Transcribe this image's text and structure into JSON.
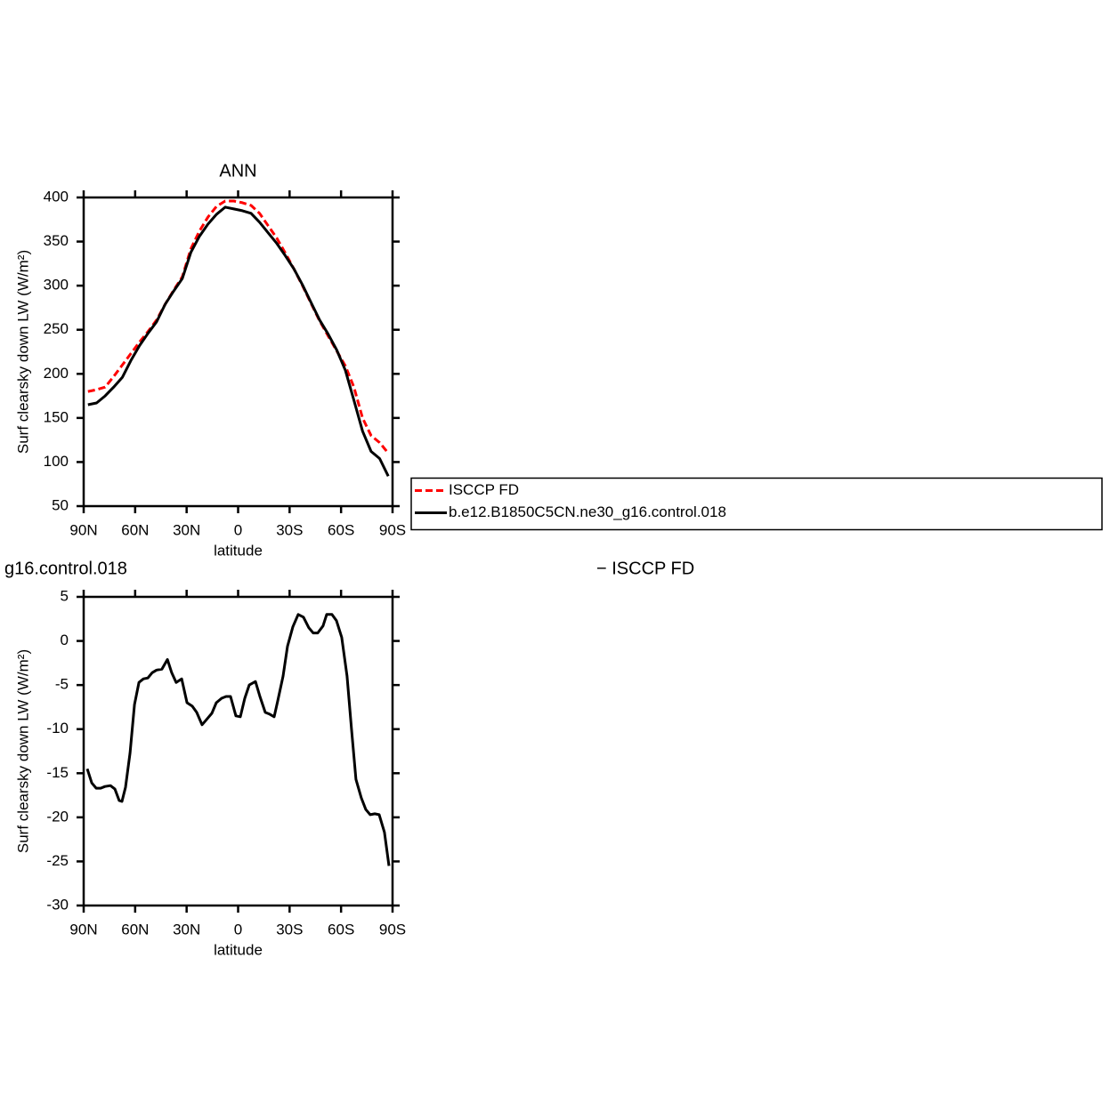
{
  "chart_data": [
    {
      "type": "line",
      "title": "ANN",
      "xlabel": "latitude",
      "ylabel": "Surf clearsky down LW (W/m²)",
      "x": [
        87.5,
        82.5,
        77.5,
        72.5,
        67.5,
        62.5,
        57.5,
        52.5,
        47.5,
        42.5,
        37.5,
        32.5,
        27.5,
        22.5,
        17.5,
        12.5,
        7.5,
        2.5,
        -2.5,
        -7.5,
        -12.5,
        -17.5,
        -22.5,
        -27.5,
        -32.5,
        -37.5,
        -42.5,
        -47.5,
        -52.5,
        -57.5,
        -62.5,
        -67.5,
        -72.5,
        -77.5,
        -82.5,
        -87.5
      ],
      "series": [
        {
          "name": "ISCCP FD",
          "color": "#ff0000",
          "line_style": "dashed",
          "values": [
            180,
            182,
            185,
            197,
            210,
            223,
            236,
            248,
            261,
            279,
            295,
            310,
            342,
            362,
            378,
            390,
            396,
            396,
            394,
            391,
            382,
            368,
            354,
            337,
            319,
            300,
            280,
            260,
            243,
            226,
            209,
            185,
            150,
            130,
            122,
            110
          ]
        },
        {
          "name": "b.e12.B1850C5CN.ne30_g16.control.018",
          "color": "#000000",
          "line_style": "solid",
          "values": [
            165,
            167,
            175,
            185,
            196,
            215,
            232,
            246,
            259,
            279,
            294,
            308,
            338,
            356,
            370,
            381,
            389,
            387,
            385,
            382,
            372,
            360,
            348,
            334,
            319,
            301,
            281,
            261,
            245,
            227,
            204,
            170,
            135,
            112,
            104,
            84
          ]
        }
      ],
      "xlim": [
        90,
        -90
      ],
      "xticks": [
        {
          "value": 90,
          "label": "90N"
        },
        {
          "value": 60,
          "label": "60N"
        },
        {
          "value": 30,
          "label": "30N"
        },
        0,
        {
          "value": -30,
          "label": "30S"
        },
        {
          "value": -60,
          "label": "60S"
        },
        {
          "value": -90,
          "label": "90S"
        }
      ],
      "ylim": [
        50,
        400
      ],
      "yticks": [
        50,
        100,
        150,
        200,
        250,
        300,
        350,
        400
      ],
      "legend": "right"
    },
    {
      "type": "line",
      "title_left": "g16.control.018",
      "title_right": "− ISCCP FD",
      "xlabel": "latitude",
      "ylabel": "Surf clearsky down LW (W/m²)",
      "x": [
        87.9,
        85.3,
        82.7,
        80.1,
        77.6,
        74.4,
        71.8,
        69.3,
        67.7,
        65.6,
        63.0,
        60.4,
        57.8,
        55.2,
        52.6,
        50.1,
        47.5,
        44.4,
        41.2,
        38.7,
        36.1,
        32.9,
        29.8,
        26.7,
        24.1,
        21.0,
        17.9,
        15.3,
        12.7,
        9.6,
        7.0,
        4.4,
        1.3,
        -1.3,
        -3.9,
        -6.5,
        -10.1,
        -12.7,
        -15.8,
        -18.4,
        -21.0,
        -23.1,
        -26.2,
        -28.8,
        -31.9,
        -35.0,
        -38.1,
        -41.2,
        -43.8,
        -46.4,
        -49.5,
        -51.6,
        -54.7,
        -57.3,
        -60.4,
        -63.5,
        -66.1,
        -68.7,
        -71.8,
        -74.4,
        -77.0,
        -79.6,
        -82.2,
        -85.3,
        -87.9
      ],
      "series": [
        {
          "color": "#000000",
          "line_style": "solid",
          "values": [
            -14.5,
            -16.1,
            -16.7,
            -16.7,
            -16.5,
            -16.4,
            -16.8,
            -18.1,
            -18.2,
            -16.6,
            -12.7,
            -7.2,
            -4.7,
            -4.3,
            -4.2,
            -3.6,
            -3.3,
            -3.2,
            -2.1,
            -3.6,
            -4.7,
            -4.3,
            -7.0,
            -7.4,
            -8.1,
            -9.5,
            -8.8,
            -8.2,
            -7.0,
            -6.5,
            -6.3,
            -6.3,
            -8.5,
            -8.6,
            -6.5,
            -5.0,
            -4.6,
            -6.3,
            -8.1,
            -8.3,
            -8.6,
            -6.8,
            -4.0,
            -0.6,
            1.6,
            3.0,
            2.7,
            1.5,
            0.9,
            0.9,
            1.7,
            3.0,
            3.0,
            2.3,
            0.4,
            -4.0,
            -10.0,
            -15.7,
            -17.8,
            -19.1,
            -19.7,
            -19.6,
            -19.7,
            -21.7,
            -25.5
          ]
        }
      ],
      "xlim": [
        90,
        -90
      ],
      "xticks": [
        {
          "value": 90,
          "label": "90N"
        },
        {
          "value": 60,
          "label": "60N"
        },
        {
          "value": 30,
          "label": "30N"
        },
        0,
        {
          "value": -30,
          "label": "30S"
        },
        {
          "value": -60,
          "label": "60S"
        },
        {
          "value": -90,
          "label": "90S"
        }
      ],
      "ylim": [
        -30,
        5
      ],
      "yticks": [
        -30,
        -25,
        -20,
        -15,
        -10,
        -5,
        0,
        5
      ]
    }
  ]
}
